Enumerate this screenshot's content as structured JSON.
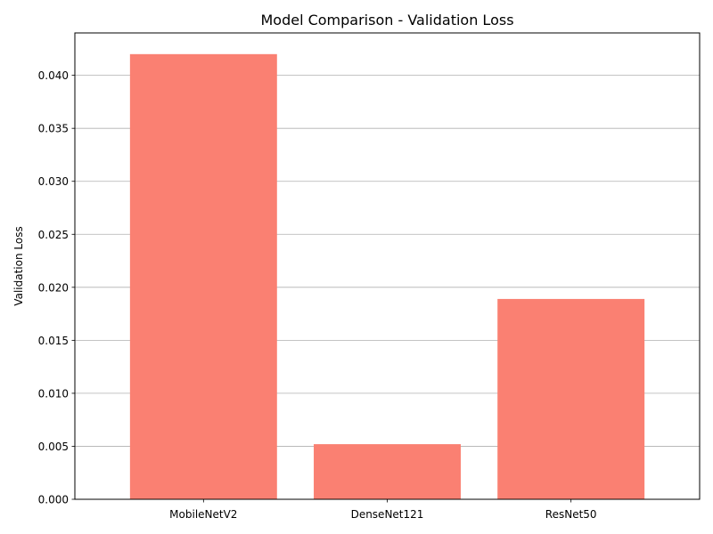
{
  "chart_data": {
    "type": "bar",
    "title": "Model Comparison - Validation Loss",
    "xlabel": "",
    "ylabel": "Validation Loss",
    "categories": [
      "MobileNetV2",
      "DenseNet121",
      "ResNet50"
    ],
    "values": [
      0.042,
      0.0052,
      0.0189
    ],
    "ylim": [
      0,
      0.044
    ],
    "yticks": [
      "0.000",
      "0.005",
      "0.010",
      "0.015",
      "0.020",
      "0.025",
      "0.030",
      "0.035",
      "0.040"
    ],
    "grid": "y",
    "legend": "none",
    "bar_color": "#fa8072"
  }
}
